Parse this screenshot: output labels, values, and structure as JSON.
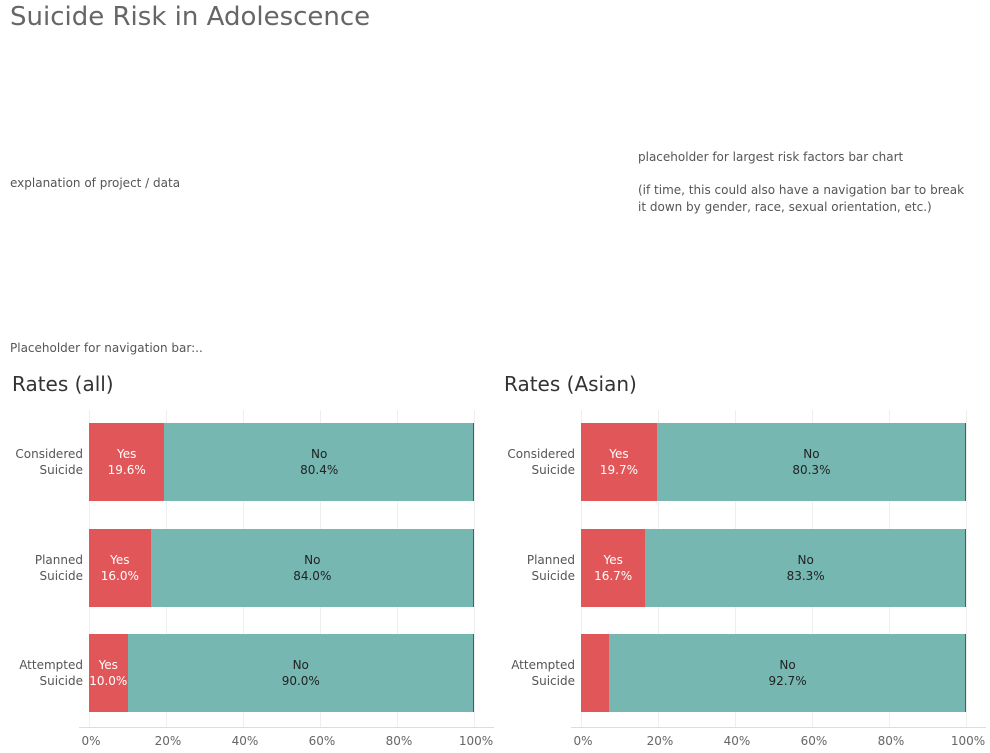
{
  "title": "Suicide Risk in Adolescence",
  "explanation": "explanation of project / data",
  "risk_placeholder": "placeholder for largest risk factors bar chart",
  "risk_note": "(if time, this could also have a navigation bar to break it down by gender, race, sexual orientation, etc.)",
  "nav_placeholder": "Placeholder for navigation bar:..",
  "chart_data": [
    {
      "type": "stacked_bar",
      "orientation": "horizontal",
      "title": "Rates (all)",
      "categories": [
        "Considered Suicide",
        "Planned Suicide",
        "Attempted Suicide"
      ],
      "series": [
        {
          "name": "Yes",
          "color": "#e15759",
          "values": [
            19.6,
            16.0,
            10.0
          ],
          "value_labels": [
            "19.6%",
            "16.0%",
            "10.0%"
          ]
        },
        {
          "name": "No",
          "color": "#76b7b2",
          "values": [
            80.4,
            84.0,
            90.0
          ],
          "value_labels": [
            "80.4%",
            "84.0%",
            "90.0%"
          ]
        }
      ],
      "xlim": [
        0,
        100
      ],
      "xticks": [
        {
          "value": 0,
          "label": "0%"
        },
        {
          "value": 20,
          "label": "20%"
        },
        {
          "value": 40,
          "label": "40%"
        },
        {
          "value": 60,
          "label": "60%"
        },
        {
          "value": 80,
          "label": "80%"
        },
        {
          "value": 100,
          "label": "100%"
        }
      ],
      "grid": true
    },
    {
      "type": "stacked_bar",
      "orientation": "horizontal",
      "title": "Rates (Asian)",
      "categories": [
        "Considered Suicide",
        "Planned Suicide",
        "Attempted Suicide"
      ],
      "series": [
        {
          "name": "Yes",
          "color": "#e15759",
          "values": [
            19.7,
            16.7,
            7.3
          ],
          "value_labels": [
            "19.7%",
            "16.7%",
            null
          ]
        },
        {
          "name": "No",
          "color": "#76b7b2",
          "values": [
            80.3,
            83.3,
            92.7
          ],
          "value_labels": [
            "80.3%",
            "83.3%",
            "92.7%"
          ]
        }
      ],
      "xlim": [
        0,
        100
      ],
      "xticks": [
        {
          "value": 0,
          "label": "0%"
        },
        {
          "value": 20,
          "label": "20%"
        },
        {
          "value": 40,
          "label": "40%"
        },
        {
          "value": 60,
          "label": "60%"
        },
        {
          "value": 80,
          "label": "80%"
        },
        {
          "value": 100,
          "label": "100%"
        }
      ],
      "grid": true
    }
  ]
}
